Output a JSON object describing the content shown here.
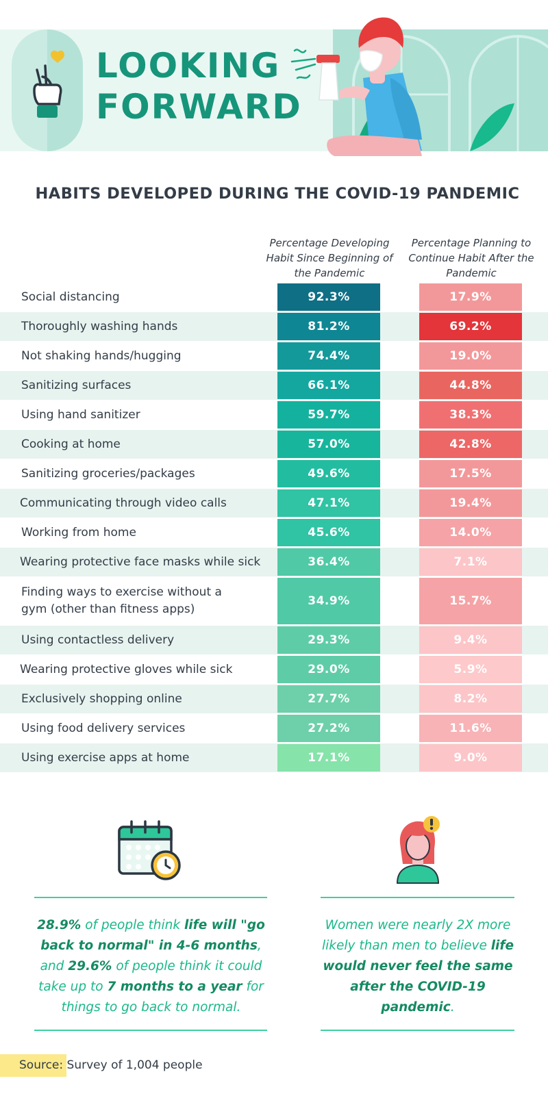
{
  "header": {
    "title_lines": [
      "LOOKING",
      "FORWARD"
    ]
  },
  "chart_data": {
    "type": "table",
    "title": "HABITS DEVELOPED DURING THE COVID-19 PANDEMIC",
    "columns": [
      "Percentage Developing Habit Since Beginning of the Pandemic",
      "Percentage Planning to Continue Habit After the Pandemic"
    ],
    "categories": [
      "Social distancing",
      "Thoroughly washing hands",
      "Not shaking hands/hugging",
      "Sanitizing surfaces",
      "Using hand sanitizer",
      "Cooking at home",
      "Sanitizing groceries/packages",
      "Communicating through video calls",
      "Working from home",
      "Wearing protective face masks while sick",
      "Finding ways to exercise without a\ngym (other than fitness apps)",
      "Using contactless delivery",
      "Wearing protective gloves while sick",
      "Exclusively shopping online",
      "Using food delivery services",
      "Using exercise apps at home"
    ],
    "series": [
      {
        "values": [
          92.3,
          81.2,
          74.4,
          66.1,
          59.7,
          57.0,
          49.6,
          47.1,
          45.6,
          36.4,
          34.9,
          29.3,
          29.0,
          27.7,
          27.2,
          17.1
        ],
        "unit": "%"
      },
      {
        "values": [
          17.9,
          69.2,
          19.0,
          44.8,
          38.3,
          42.8,
          17.5,
          19.4,
          14.0,
          7.1,
          15.7,
          9.4,
          5.9,
          8.2,
          11.6,
          9.0
        ],
        "unit": "%"
      }
    ],
    "value_labels": [
      [
        "92.3%",
        "81.2%",
        "74.4%",
        "66.1%",
        "59.7%",
        "57.0%",
        "49.6%",
        "47.1%",
        "45.6%",
        "36.4%",
        "34.9%",
        "29.3%",
        "29.0%",
        "27.7%",
        "27.2%",
        "17.1%"
      ],
      [
        "17.9%",
        "69.2%",
        "19.0%",
        "44.8%",
        "38.3%",
        "42.8%",
        "17.5%",
        "19.4%",
        "14.0%",
        "7.1%",
        "15.7%",
        "9.4%",
        "5.9%",
        "8.2%",
        "11.6%",
        "9.0%"
      ]
    ],
    "colors": {
      "developing": [
        "#0f6f85",
        "#0f8693",
        "#14999b",
        "#14a7a0",
        "#14b29e",
        "#17b59c",
        "#22bda0",
        "#30c3a4",
        "#30c3a4",
        "#50c9a6",
        "#50c9a6",
        "#5fcca8",
        "#5fcca8",
        "#6dd0aa",
        "#6dd0aa",
        "#86e3aa"
      ],
      "continuing": [
        "#f3989a",
        "#e3353a",
        "#f3989a",
        "#e96660",
        "#f07072",
        "#ec6766",
        "#f3989a",
        "#f3989a",
        "#f5a3a6",
        "#fcc5c8",
        "#f5a3a6",
        "#fcc5c8",
        "#fdc9cb",
        "#fcc5c8",
        "#f7b3b6",
        "#fcc5c8"
      ]
    }
  },
  "notes": {
    "left": [
      {
        "b": "28.9%"
      },
      {
        "t": " of people think "
      },
      {
        "b": "life will \"go back to normal\" in 4-6 months"
      },
      {
        "t": ", and "
      },
      {
        "b": "29.6%"
      },
      {
        "t": " of people think it could take up to "
      },
      {
        "b": "7 months to a year"
      },
      {
        "t": " for things to go back to normal."
      }
    ],
    "right": [
      {
        "t": "Women were nearly 2X more likely than men to believe "
      },
      {
        "b": "life would never feel the same after the COVID-19 pandemic"
      },
      {
        "t": "."
      }
    ]
  },
  "source": {
    "label": "Source:",
    "text": " Survey of 1,004 people"
  }
}
